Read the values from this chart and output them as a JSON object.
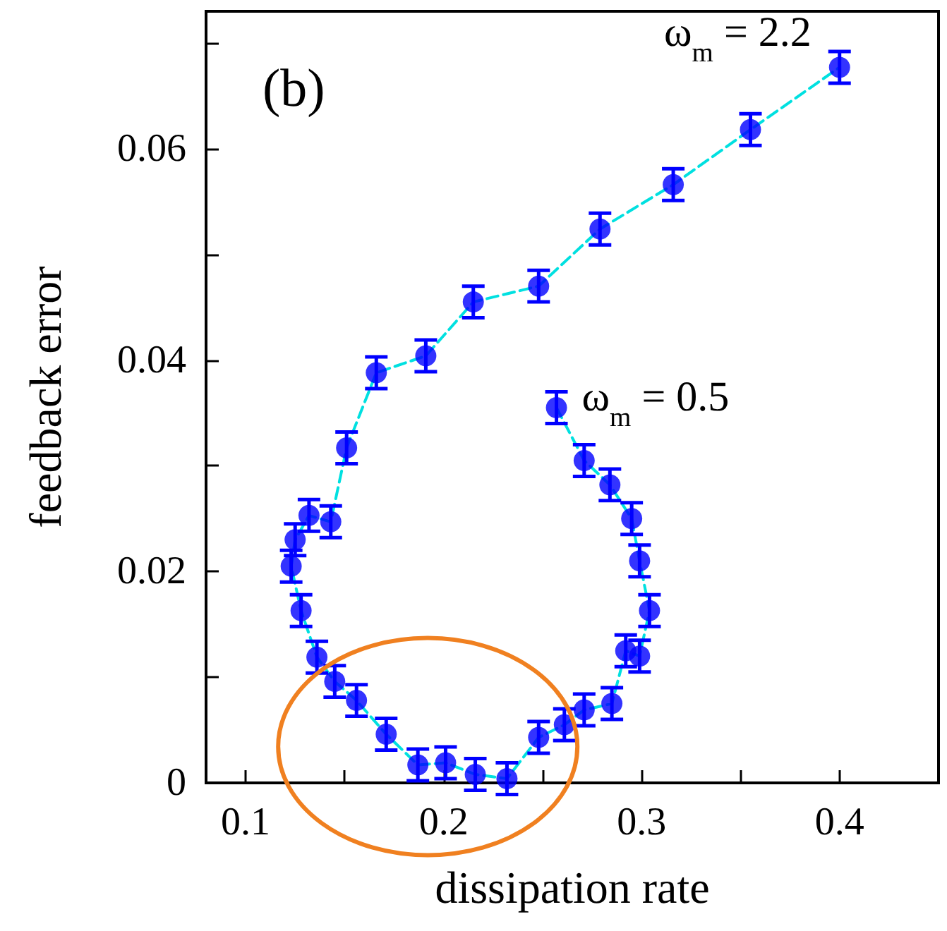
{
  "chart_data": {
    "type": "scatter",
    "xlabel": "dissipation rate",
    "ylabel": "feedback error",
    "x": [
      0.257,
      0.271,
      0.284,
      0.295,
      0.299,
      0.304,
      0.299,
      0.292,
      0.285,
      0.271,
      0.261,
      0.248,
      0.232,
      0.216,
      0.201,
      0.187,
      0.171,
      0.156,
      0.145,
      0.136,
      0.128,
      0.123,
      0.125,
      0.132,
      0.143,
      0.151,
      0.166,
      0.191,
      0.215,
      0.248,
      0.279,
      0.316,
      0.355,
      0.4
    ],
    "series": [
      {
        "type": "line",
        "color": "#00e0e0",
        "marker": "none",
        "line_style": "dashed",
        "values": [
          0.0355,
          0.0305,
          0.0282,
          0.025,
          0.021,
          0.0163,
          0.012,
          0.0125,
          0.0075,
          0.0069,
          0.0055,
          0.0043,
          0.0004,
          0.0008,
          0.0019,
          0.0017,
          0.0046,
          0.0078,
          0.0096,
          0.0119,
          0.0163,
          0.0205,
          0.023,
          0.0253,
          0.0247,
          0.0317,
          0.0388,
          0.0404,
          0.0455,
          0.047,
          0.0524,
          0.0566,
          0.0618,
          0.0677
        ]
      },
      {
        "color": "#0000ff",
        "marker": "circle",
        "values": [
          0.0355,
          0.0305,
          0.0282,
          0.025,
          0.021,
          0.0163,
          0.012,
          0.0125,
          0.0075,
          0.0069,
          0.0055,
          0.0043,
          0.0004,
          0.0008,
          0.0019,
          0.0017,
          0.0046,
          0.0078,
          0.0096,
          0.0119,
          0.0163,
          0.0205,
          0.023,
          0.0253,
          0.0247,
          0.0317,
          0.0388,
          0.0404,
          0.0455,
          0.047,
          0.0524,
          0.0566,
          0.0618,
          0.0677
        ],
        "errors": [
          0.0015,
          0.0015,
          0.0015,
          0.0015,
          0.0015,
          0.0015,
          0.0015,
          0.0015,
          0.0015,
          0.0015,
          0.0015,
          0.0015,
          0.0015,
          0.0015,
          0.0015,
          0.0015,
          0.0015,
          0.0015,
          0.0015,
          0.0015,
          0.0015,
          0.0015,
          0.0015,
          0.0015,
          0.0015,
          0.0015,
          0.0015,
          0.0015,
          0.0015,
          0.0015,
          0.0015,
          0.0015,
          0.0015,
          0.0015
        ]
      }
    ],
    "xlim": [
      0.08,
      0.45
    ],
    "xticks": [
      {
        "value": 0.1,
        "label": "0.1"
      },
      {
        "value": 0.15,
        "label": null
      },
      {
        "value": 0.2,
        "label": "0.2"
      },
      {
        "value": 0.25,
        "label": null
      },
      {
        "value": 0.3,
        "label": "0.3"
      },
      {
        "value": 0.35,
        "label": null
      },
      {
        "value": 0.4,
        "label": "0.4"
      }
    ],
    "ylim": [
      0,
      0.073
    ],
    "yticks": [
      {
        "value": 0,
        "label": "0"
      },
      {
        "value": 0.01,
        "label": null
      },
      {
        "value": 0.02,
        "label": "0.02"
      },
      {
        "value": 0.03,
        "label": null
      },
      {
        "value": 0.04,
        "label": "0.04"
      },
      {
        "value": 0.05,
        "label": null
      },
      {
        "value": 0.06,
        "label": "0.06"
      },
      {
        "value": 0.07,
        "label": null
      }
    ],
    "annotations": [
      "(b)",
      {
        "text": "ω$_{m}$ = 2.2",
        "x": 0.4,
        "y": 0.0677
      },
      {
        "text": "ω$_{m}$ = 0.5",
        "x": 0.257,
        "y": 0.0355
      }
    ]
  }
}
